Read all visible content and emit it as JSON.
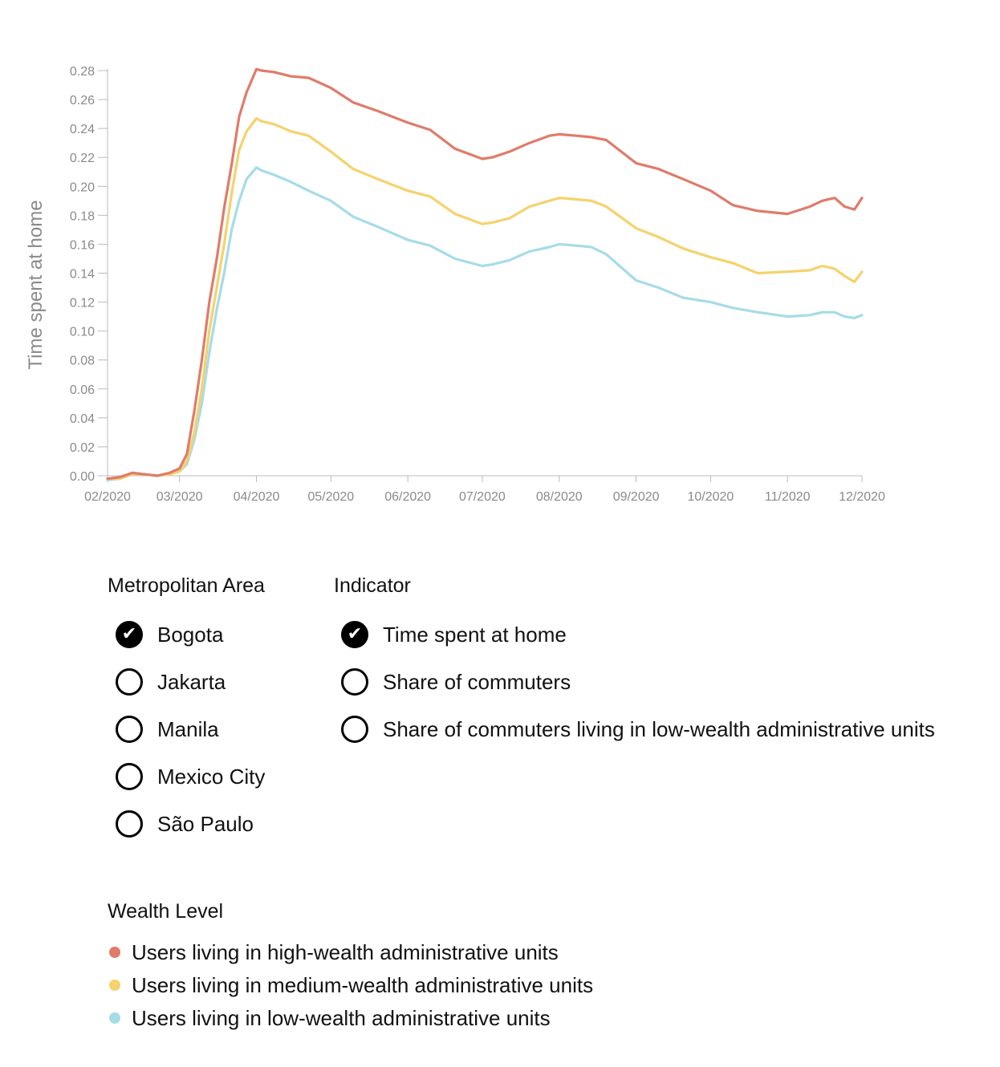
{
  "chart_data": {
    "type": "line",
    "ylabel": "Time spent at home",
    "xlabel": "",
    "ylim": [
      0,
      0.28
    ],
    "yticks": [
      "0.00",
      "0.02",
      "0.04",
      "0.06",
      "0.08",
      "0.10",
      "0.12",
      "0.14",
      "0.16",
      "0.18",
      "0.20",
      "0.22",
      "0.24",
      "0.26",
      "0.28"
    ],
    "xlim": [
      "2020-02-01",
      "2020-12-01"
    ],
    "xticks": [
      {
        "date": "2020-02-01",
        "label": "02/2020"
      },
      {
        "date": "2020-03-01",
        "label": "03/2020"
      },
      {
        "date": "2020-04-01",
        "label": "04/2020"
      },
      {
        "date": "2020-05-01",
        "label": "05/2020"
      },
      {
        "date": "2020-06-01",
        "label": "06/2020"
      },
      {
        "date": "2020-07-01",
        "label": "07/2020"
      },
      {
        "date": "2020-08-01",
        "label": "08/2020"
      },
      {
        "date": "2020-09-01",
        "label": "09/2020"
      },
      {
        "date": "2020-10-01",
        "label": "10/2020"
      },
      {
        "date": "2020-11-01",
        "label": "11/2020"
      },
      {
        "date": "2020-12-01",
        "label": "12/2020"
      }
    ],
    "x": [
      "2020-02-01",
      "2020-02-06",
      "2020-02-11",
      "2020-02-16",
      "2020-02-21",
      "2020-02-26",
      "2020-03-01",
      "2020-03-04",
      "2020-03-07",
      "2020-03-10",
      "2020-03-13",
      "2020-03-16",
      "2020-03-19",
      "2020-03-22",
      "2020-03-25",
      "2020-03-28",
      "2020-04-01",
      "2020-04-03",
      "2020-04-08",
      "2020-04-15",
      "2020-04-22",
      "2020-05-01",
      "2020-05-10",
      "2020-05-20",
      "2020-06-01",
      "2020-06-10",
      "2020-06-20",
      "2020-07-01",
      "2020-07-05",
      "2020-07-12",
      "2020-07-20",
      "2020-07-28",
      "2020-08-01",
      "2020-08-08",
      "2020-08-14",
      "2020-08-20",
      "2020-09-01",
      "2020-09-10",
      "2020-09-20",
      "2020-10-01",
      "2020-10-10",
      "2020-10-20",
      "2020-11-01",
      "2020-11-10",
      "2020-11-15",
      "2020-11-20",
      "2020-11-24",
      "2020-11-28",
      "2020-12-01"
    ],
    "series": [
      {
        "name": "Users living in high-wealth administrative units",
        "color": "#E07B6A",
        "values": [
          -0.002,
          -0.001,
          0.002,
          0.001,
          0.0,
          0.002,
          0.005,
          0.015,
          0.045,
          0.08,
          0.12,
          0.15,
          0.185,
          0.215,
          0.248,
          0.265,
          0.281,
          0.28,
          0.279,
          0.276,
          0.275,
          0.268,
          0.258,
          0.252,
          0.244,
          0.239,
          0.226,
          0.219,
          0.22,
          0.224,
          0.23,
          0.235,
          0.236,
          0.235,
          0.234,
          0.232,
          0.216,
          0.212,
          0.205,
          0.197,
          0.187,
          0.183,
          0.181,
          0.186,
          0.19,
          0.192,
          0.186,
          0.184,
          0.192
        ]
      },
      {
        "name": "Users living in medium-wealth administrative units",
        "color": "#F5D26B",
        "values": [
          -0.002,
          -0.002,
          0.001,
          0.001,
          0.0,
          0.001,
          0.003,
          0.01,
          0.03,
          0.06,
          0.1,
          0.13,
          0.16,
          0.195,
          0.225,
          0.238,
          0.247,
          0.245,
          0.243,
          0.238,
          0.235,
          0.224,
          0.212,
          0.205,
          0.197,
          0.193,
          0.181,
          0.174,
          0.175,
          0.178,
          0.186,
          0.19,
          0.192,
          0.191,
          0.19,
          0.186,
          0.171,
          0.165,
          0.157,
          0.151,
          0.147,
          0.14,
          0.141,
          0.142,
          0.145,
          0.143,
          0.138,
          0.134,
          0.141
        ]
      },
      {
        "name": "Users living in low-wealth administrative units",
        "color": "#A5DCE8",
        "values": [
          -0.003,
          -0.002,
          0.001,
          0.001,
          0.0,
          0.001,
          0.003,
          0.008,
          0.025,
          0.05,
          0.085,
          0.115,
          0.14,
          0.17,
          0.19,
          0.205,
          0.213,
          0.211,
          0.208,
          0.203,
          0.197,
          0.19,
          0.179,
          0.172,
          0.163,
          0.159,
          0.15,
          0.145,
          0.146,
          0.149,
          0.155,
          0.158,
          0.16,
          0.159,
          0.158,
          0.153,
          0.135,
          0.13,
          0.123,
          0.12,
          0.116,
          0.113,
          0.11,
          0.111,
          0.113,
          0.113,
          0.11,
          0.109,
          0.111
        ]
      }
    ]
  },
  "filters": {
    "metro_title": "Metropolitan Area",
    "metro_options": [
      {
        "label": "Bogota",
        "checked": true
      },
      {
        "label": "Jakarta",
        "checked": false
      },
      {
        "label": "Manila",
        "checked": false
      },
      {
        "label": "Mexico City",
        "checked": false
      },
      {
        "label": "São Paulo",
        "checked": false
      }
    ],
    "indicator_title": "Indicator",
    "indicator_options": [
      {
        "label": "Time spent at home",
        "checked": true
      },
      {
        "label": "Share of commuters",
        "checked": false
      },
      {
        "label": "Share of commuters living in low-wealth administrative units",
        "checked": false
      }
    ]
  },
  "legend": {
    "title": "Wealth Level",
    "items": [
      {
        "label": "Users living in high-wealth administrative units",
        "color": "#E07B6A"
      },
      {
        "label": "Users living in medium-wealth administrative units",
        "color": "#F5D26B"
      },
      {
        "label": "Users living in low-wealth administrative units",
        "color": "#A5DCE8"
      }
    ]
  }
}
